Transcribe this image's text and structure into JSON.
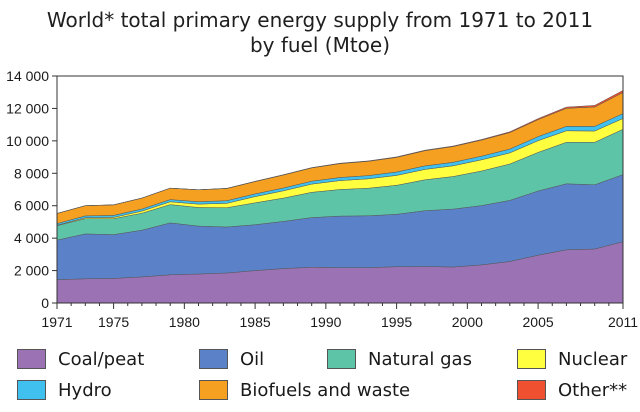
{
  "chart_data": {
    "type": "area",
    "stacked": true,
    "title_lines": [
      "World* total primary energy supply from 1971 to 2011",
      "by fuel (Mtoe)"
    ],
    "xlabel": "",
    "ylabel": "",
    "xlim": [
      1971,
      2011
    ],
    "ylim": [
      0,
      14000
    ],
    "x_ticks": [
      "1971",
      "1975",
      "1980",
      "1985",
      "1990",
      "1995",
      "2000",
      "2005",
      "2011"
    ],
    "x_tick_values": [
      1971,
      1975,
      1980,
      1985,
      1990,
      1995,
      2000,
      2005,
      2011
    ],
    "y_ticks": [
      "0",
      "2 000",
      "4 000",
      "6 000",
      "8 000",
      "10 000",
      "12 000",
      "14 000"
    ],
    "y_tick_values": [
      0,
      2000,
      4000,
      6000,
      8000,
      10000,
      12000,
      14000
    ],
    "grid": false,
    "legend_position": "bottom",
    "x": [
      1971,
      1973,
      1975,
      1977,
      1979,
      1981,
      1983,
      1985,
      1987,
      1989,
      1991,
      1993,
      1995,
      1997,
      1999,
      2001,
      2003,
      2005,
      2007,
      2009,
      2011
    ],
    "series": [
      {
        "name": "Coal/peat",
        "color": "#9b72b3",
        "values": [
          1440,
          1490,
          1520,
          1610,
          1740,
          1790,
          1850,
          2000,
          2120,
          2210,
          2180,
          2180,
          2240,
          2250,
          2220,
          2350,
          2560,
          2950,
          3280,
          3330,
          3780
        ]
      },
      {
        "name": "Oil",
        "color": "#5b82c8",
        "values": [
          2440,
          2770,
          2700,
          2880,
          3200,
          2950,
          2840,
          2830,
          2910,
          3060,
          3180,
          3200,
          3230,
          3440,
          3570,
          3660,
          3770,
          3960,
          4070,
          3960,
          4140
        ]
      },
      {
        "name": "Natural gas",
        "color": "#5ec4a8",
        "values": [
          890,
          940,
          980,
          1050,
          1130,
          1150,
          1190,
          1350,
          1440,
          1560,
          1640,
          1700,
          1790,
          1910,
          2010,
          2130,
          2240,
          2380,
          2560,
          2620,
          2790
        ]
      },
      {
        "name": "Nuclear",
        "color": "#ffff40",
        "values": [
          30,
          60,
          80,
          130,
          170,
          210,
          270,
          380,
          450,
          500,
          550,
          580,
          610,
          640,
          660,
          690,
          690,
          720,
          710,
          700,
          670
        ]
      },
      {
        "name": "Hydro",
        "color": "#40c0ee",
        "values": [
          100,
          110,
          120,
          130,
          140,
          150,
          160,
          170,
          175,
          180,
          190,
          200,
          210,
          215,
          220,
          225,
          230,
          250,
          270,
          280,
          300
        ]
      },
      {
        "name": "Biofuels and waste",
        "color": "#f5a020",
        "values": [
          620,
          630,
          650,
          670,
          700,
          730,
          750,
          760,
          800,
          820,
          860,
          880,
          900,
          940,
          970,
          990,
          1020,
          1050,
          1120,
          1200,
          1300
        ]
      },
      {
        "name": "Other**",
        "color": "#ee5030",
        "values": [
          5,
          6,
          7,
          8,
          9,
          10,
          12,
          14,
          16,
          20,
          22,
          25,
          28,
          30,
          35,
          40,
          50,
          60,
          75,
          95,
          130
        ]
      }
    ]
  }
}
